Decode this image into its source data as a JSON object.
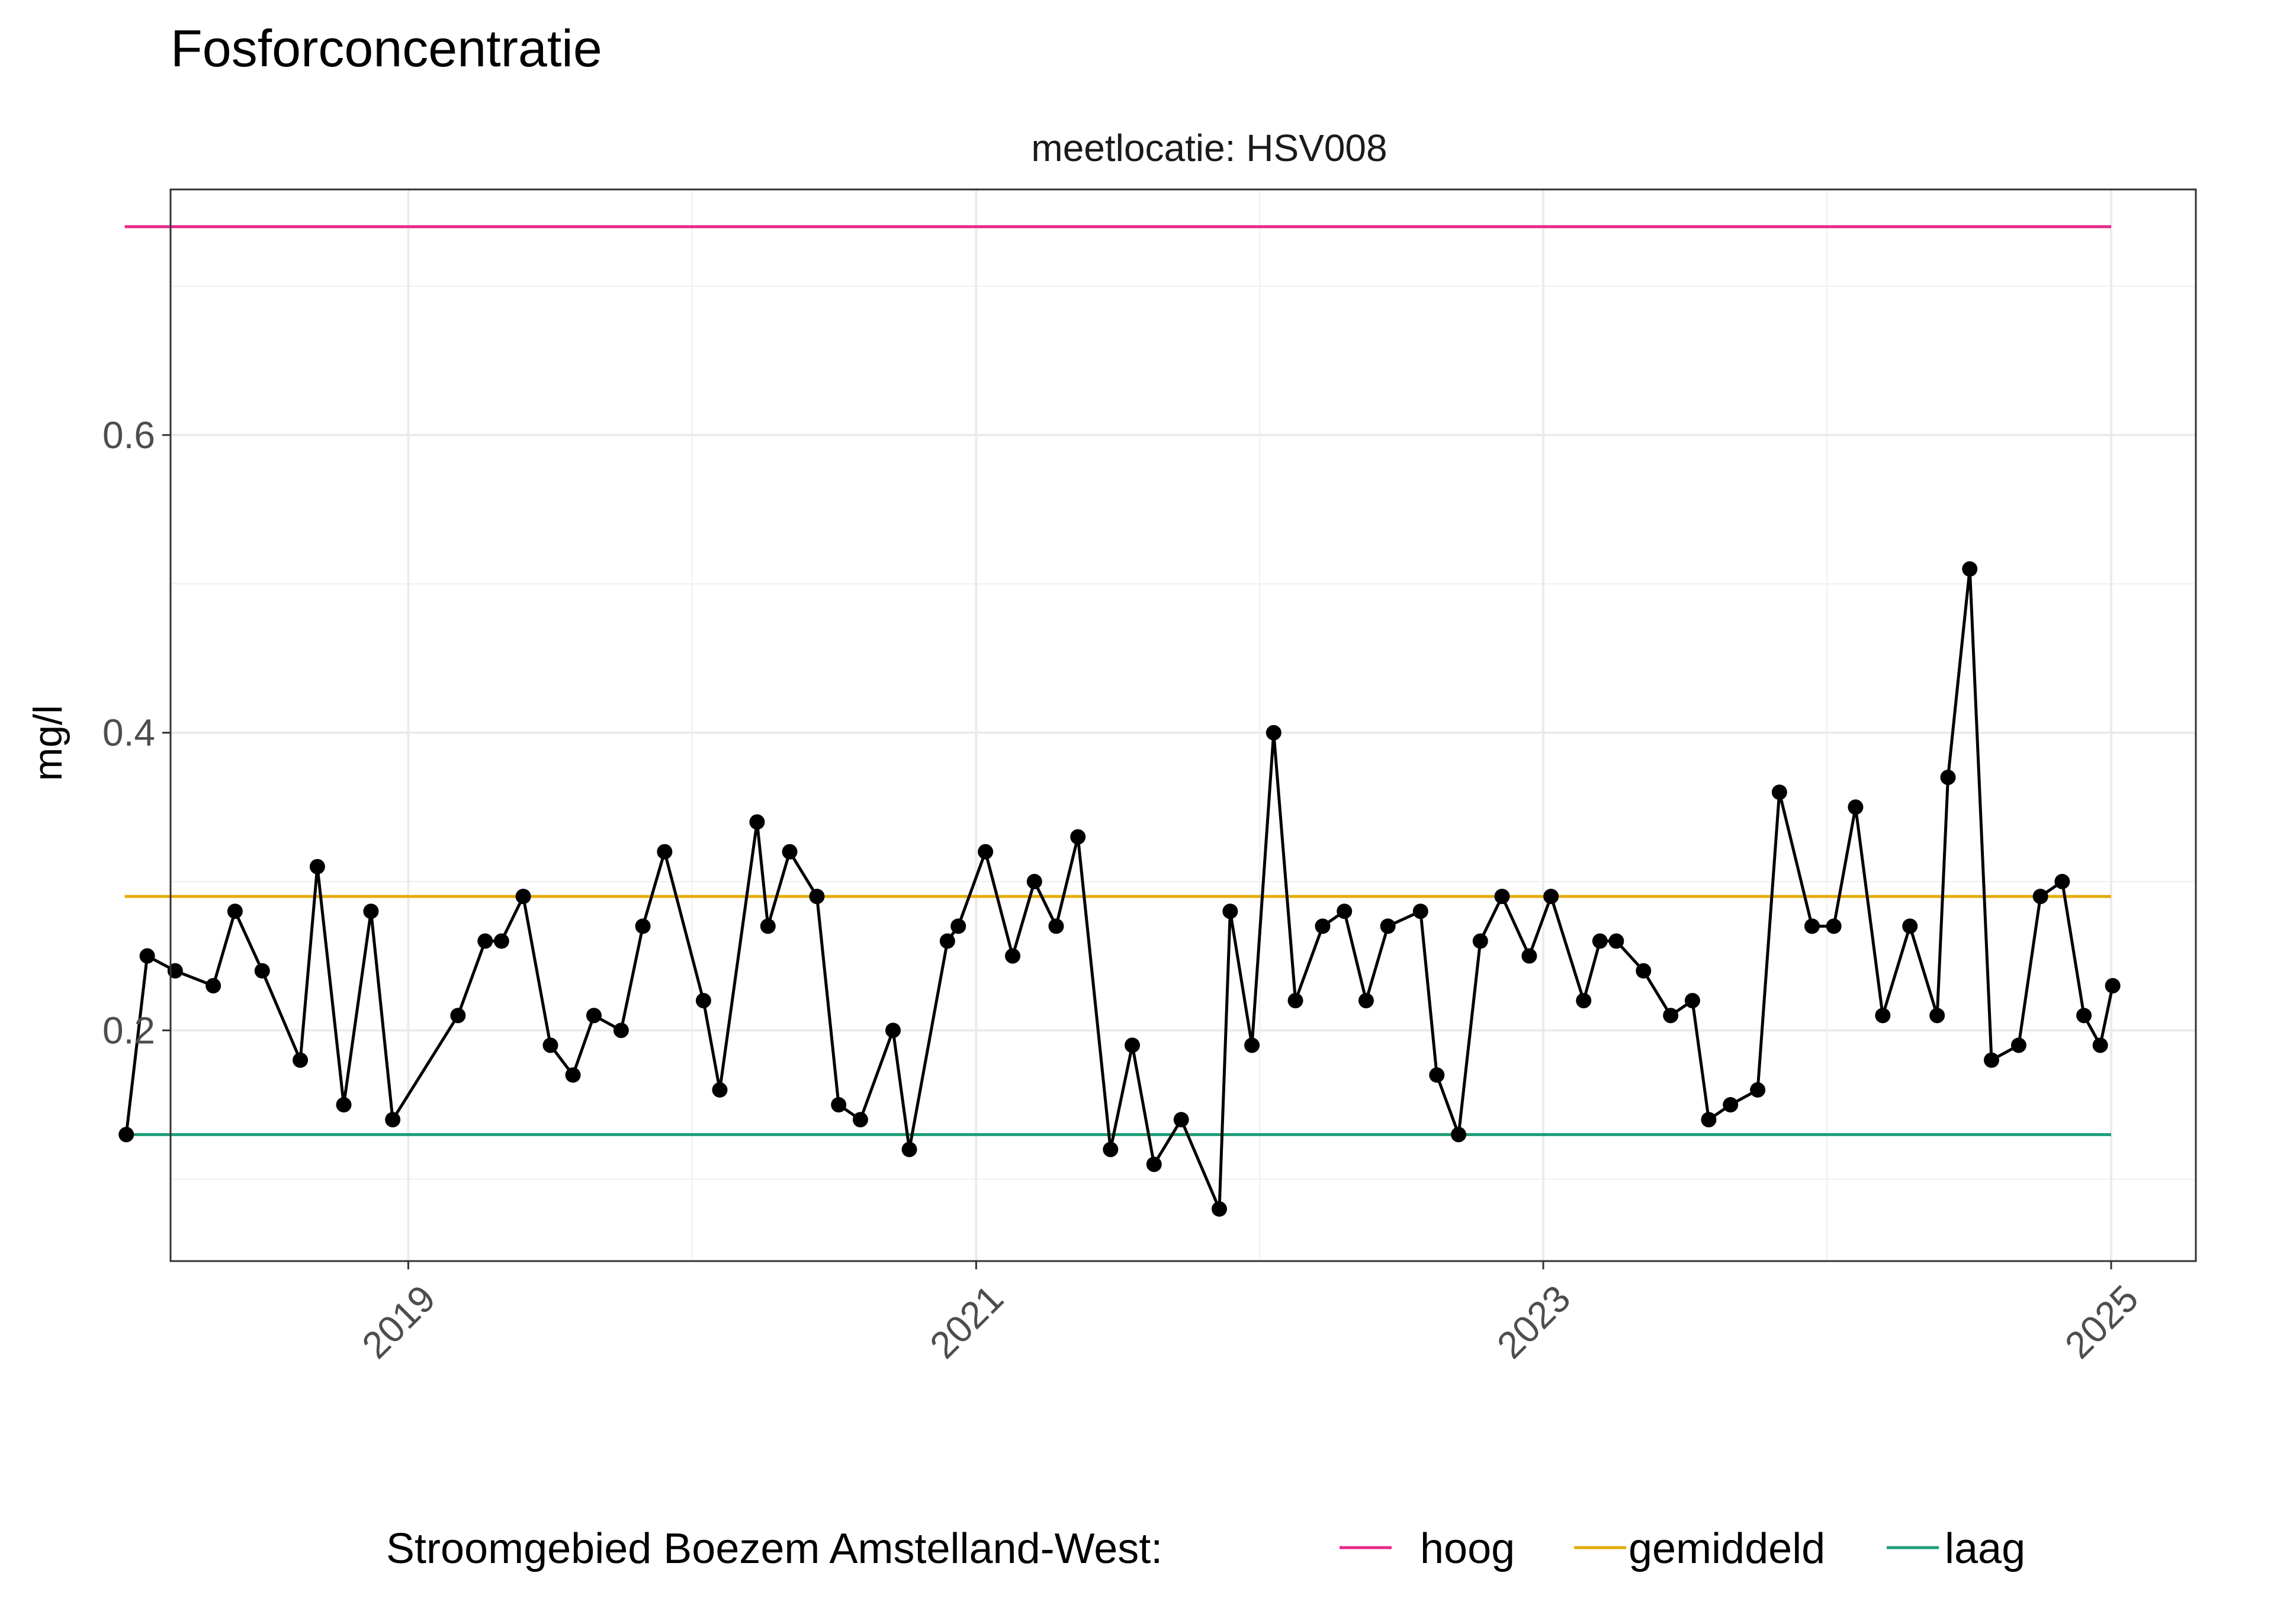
{
  "chart_data": {
    "type": "line",
    "title": "Fosforconcentratie",
    "subtitle": "meetlocatie: HSV008",
    "xlabel": "",
    "ylabel": "mg/l",
    "xlim": [
      "2018-03-01",
      "2025-04-20"
    ],
    "ylim": [
      0.045,
      0.765
    ],
    "y_ticks": [
      0.2,
      0.4,
      0.6
    ],
    "x_ticks": [
      "2019",
      "2021",
      "2023",
      "2025"
    ],
    "grid": true,
    "legend": {
      "position": "bottom",
      "title": "Stroomgebied Boezem Amstelland-West:",
      "entries": [
        "hoog",
        "gemiddeld",
        "laag"
      ]
    },
    "reference_lines": [
      {
        "name": "hoog",
        "value": 0.74,
        "color": "#E7298A",
        "x_start": "2018-01-01",
        "x_end": "2025-01-01"
      },
      {
        "name": "gemiddeld",
        "value": 0.29,
        "color": "#E6AB02",
        "x_start": "2018-01-01",
        "x_end": "2025-01-01"
      },
      {
        "name": "laag",
        "value": 0.13,
        "color": "#1B9E77",
        "x_start": "2018-01-01",
        "x_end": "2025-01-01"
      }
    ],
    "series": [
      {
        "color": "#000000",
        "points": [
          [
            "2018-01-03",
            0.13
          ],
          [
            "2018-01-30",
            0.25
          ],
          [
            "2018-03-07",
            0.24
          ],
          [
            "2018-04-25",
            0.23
          ],
          [
            "2018-05-23",
            0.28
          ],
          [
            "2018-06-27",
            0.24
          ],
          [
            "2018-08-15",
            0.18
          ],
          [
            "2018-09-06",
            0.31
          ],
          [
            "2018-10-10",
            0.15
          ],
          [
            "2018-11-14",
            0.28
          ],
          [
            "2018-12-12",
            0.14
          ],
          [
            "2019-03-06",
            0.21
          ],
          [
            "2019-04-10",
            0.26
          ],
          [
            "2019-05-01",
            0.26
          ],
          [
            "2019-05-29",
            0.29
          ],
          [
            "2019-07-03",
            0.19
          ],
          [
            "2019-08-01",
            0.17
          ],
          [
            "2019-08-28",
            0.21
          ],
          [
            "2019-10-02",
            0.2
          ],
          [
            "2019-10-30",
            0.27
          ],
          [
            "2019-11-27",
            0.32
          ],
          [
            "2020-01-16",
            0.22
          ],
          [
            "2020-02-06",
            0.16
          ],
          [
            "2020-03-25",
            0.34
          ],
          [
            "2020-04-08",
            0.27
          ],
          [
            "2020-05-06",
            0.32
          ],
          [
            "2020-06-10",
            0.29
          ],
          [
            "2020-07-08",
            0.15
          ],
          [
            "2020-08-05",
            0.14
          ],
          [
            "2020-09-16",
            0.2
          ],
          [
            "2020-10-07",
            0.12
          ],
          [
            "2020-11-25",
            0.26
          ],
          [
            "2020-12-09",
            0.27
          ],
          [
            "2021-01-13",
            0.32
          ],
          [
            "2021-02-17",
            0.25
          ],
          [
            "2021-03-17",
            0.3
          ],
          [
            "2021-04-14",
            0.27
          ],
          [
            "2021-05-12",
            0.33
          ],
          [
            "2021-06-23",
            0.12
          ],
          [
            "2021-07-21",
            0.19
          ],
          [
            "2021-08-18",
            0.11
          ],
          [
            "2021-09-22",
            0.14
          ],
          [
            "2021-11-10",
            0.08
          ],
          [
            "2021-11-24",
            0.28
          ],
          [
            "2021-12-22",
            0.19
          ],
          [
            "2022-01-19",
            0.4
          ],
          [
            "2022-02-16",
            0.22
          ],
          [
            "2022-03-23",
            0.27
          ],
          [
            "2022-04-20",
            0.28
          ],
          [
            "2022-05-18",
            0.22
          ],
          [
            "2022-06-15",
            0.27
          ],
          [
            "2022-07-27",
            0.28
          ],
          [
            "2022-08-17",
            0.17
          ],
          [
            "2022-09-14",
            0.13
          ],
          [
            "2022-10-12",
            0.26
          ],
          [
            "2022-11-09",
            0.29
          ],
          [
            "2022-12-14",
            0.25
          ],
          [
            "2023-01-11",
            0.29
          ],
          [
            "2023-02-22",
            0.22
          ],
          [
            "2023-03-15",
            0.26
          ],
          [
            "2023-04-05",
            0.26
          ],
          [
            "2023-05-10",
            0.24
          ],
          [
            "2023-06-14",
            0.21
          ],
          [
            "2023-07-12",
            0.22
          ],
          [
            "2023-08-02",
            0.14
          ],
          [
            "2023-08-30",
            0.15
          ],
          [
            "2023-10-04",
            0.16
          ],
          [
            "2023-11-01",
            0.36
          ],
          [
            "2023-12-13",
            0.27
          ],
          [
            "2024-01-10",
            0.27
          ],
          [
            "2024-02-07",
            0.35
          ],
          [
            "2024-03-13",
            0.21
          ],
          [
            "2024-04-17",
            0.27
          ],
          [
            "2024-05-22",
            0.21
          ],
          [
            "2024-06-05",
            0.37
          ],
          [
            "2024-07-03",
            0.51
          ],
          [
            "2024-07-31",
            0.18
          ],
          [
            "2024-09-04",
            0.19
          ],
          [
            "2024-10-02",
            0.29
          ],
          [
            "2024-10-30",
            0.3
          ],
          [
            "2024-11-27",
            0.21
          ],
          [
            "2024-12-18",
            0.19
          ],
          [
            "2025-01-03",
            0.23
          ]
        ]
      }
    ]
  }
}
